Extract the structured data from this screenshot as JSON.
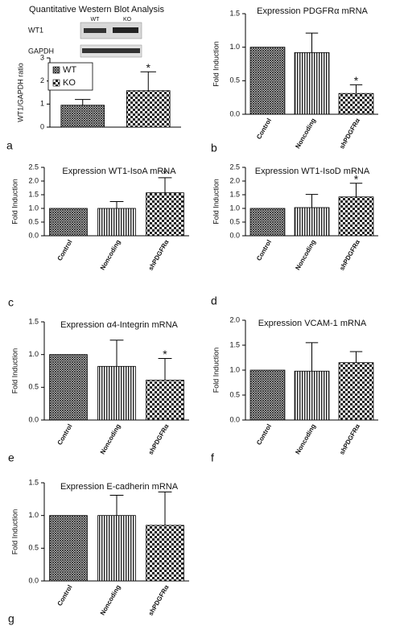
{
  "chart_data": [
    {
      "type": "bar",
      "title": "Quantitative Western Blot Analysis",
      "panel": "a",
      "ylabel": "WT1/GAPDH ratio",
      "blot": {
        "rows": [
          "WT1",
          "GAPDH"
        ],
        "columns": [
          "WT",
          "KO"
        ]
      },
      "categories": [
        null
      ],
      "series": [
        {
          "name": "WT",
          "values": [
            0.95
          ],
          "errors": [
            0.25
          ]
        },
        {
          "name": "KO",
          "values": [
            1.58
          ],
          "errors": [
            0.82
          ],
          "marker": "*"
        }
      ],
      "ylim": [
        0,
        3
      ],
      "yticks": [
        0,
        1,
        2,
        3
      ],
      "color": "#222222",
      "legend": "upper left"
    },
    {
      "type": "bar",
      "title": "Expression PDGFRα mRNA",
      "panel": "b",
      "ylabel": "Fold Induction",
      "categories": [
        "Control",
        "Noncoding",
        "shPDGFRα"
      ],
      "values": [
        1.0,
        0.92,
        0.31
      ],
      "errors": [
        null,
        0.29,
        0.13
      ],
      "markers": [
        null,
        null,
        "*"
      ],
      "color": "#222222",
      "ylim": [
        0,
        1.5
      ],
      "yticks": [
        {
          "value": 0,
          "label": "0.0"
        },
        {
          "value": 0.5,
          "label": "0.5"
        },
        {
          "value": 1,
          "label": "1.0"
        },
        {
          "value": 1.5,
          "label": "1.5"
        }
      ]
    },
    {
      "type": "bar",
      "title": "Expression WT1-IsoA mRNA",
      "panel": "c",
      "ylabel": "Fold Induction",
      "categories": [
        "Control",
        "Noncoding",
        "shPDGFRα"
      ],
      "values": [
        1.0,
        1.0,
        1.57
      ],
      "errors": [
        null,
        0.25,
        0.55
      ],
      "markers": [
        null,
        null,
        "*"
      ],
      "color": "#222222",
      "ylim": [
        0,
        2.5
      ],
      "yticks": [
        {
          "value": 0,
          "label": "0.0"
        },
        {
          "value": 0.5,
          "label": "0.5"
        },
        {
          "value": 1,
          "label": "1.0"
        },
        {
          "value": 1.5,
          "label": "1.5"
        },
        {
          "value": 2,
          "label": "2.0"
        },
        {
          "value": 2.5,
          "label": "2.5"
        }
      ]
    },
    {
      "type": "bar",
      "title": "Expression WT1-IsoD mRNA",
      "panel": "d",
      "ylabel": "Fold Induction",
      "categories": [
        "Control",
        "Noncoding",
        "shPDGFRα"
      ],
      "values": [
        1.0,
        1.03,
        1.42
      ],
      "errors": [
        null,
        0.48,
        0.5
      ],
      "markers": [
        null,
        null,
        "*"
      ],
      "color": "#222222",
      "ylim": [
        0,
        2.5
      ],
      "yticks": [
        {
          "value": 0,
          "label": "0.0"
        },
        {
          "value": 0.5,
          "label": "0.5"
        },
        {
          "value": 1,
          "label": "1.0"
        },
        {
          "value": 1.5,
          "label": "1.5"
        },
        {
          "value": 2,
          "label": "2.0"
        },
        {
          "value": 2.5,
          "label": "2.5"
        }
      ]
    },
    {
      "type": "bar",
      "title": "Expression α4-Integrin mRNA",
      "panel": "e",
      "ylabel": "Fold Induction",
      "categories": [
        "Control",
        "Noncoding",
        "shPDGFRα"
      ],
      "values": [
        1.0,
        0.82,
        0.61
      ],
      "errors": [
        null,
        0.4,
        0.33
      ],
      "markers": [
        null,
        null,
        "*"
      ],
      "color": "#222222",
      "ylim": [
        0,
        1.5
      ],
      "yticks": [
        {
          "value": 0,
          "label": "0.0"
        },
        {
          "value": 0.5,
          "label": "0.5"
        },
        {
          "value": 1,
          "label": "1.0"
        },
        {
          "value": 1.5,
          "label": "1.5"
        }
      ]
    },
    {
      "type": "bar",
      "title": "Expression VCAM-1 mRNA",
      "panel": "f",
      "ylabel": "Fold Induction",
      "categories": [
        "Control",
        "Noncoding",
        "shPDGFRα"
      ],
      "values": [
        1.0,
        0.98,
        1.15
      ],
      "errors": [
        null,
        0.57,
        0.22
      ],
      "color": "#222222",
      "ylim": [
        0,
        2
      ],
      "yticks": [
        {
          "value": 0,
          "label": "0.0"
        },
        {
          "value": 0.5,
          "label": "0.5"
        },
        {
          "value": 1,
          "label": "1.0"
        },
        {
          "value": 1.5,
          "label": "1.5"
        },
        {
          "value": 2,
          "label": "2.0"
        }
      ]
    },
    {
      "type": "bar",
      "title": "Expression E-cadherin mRNA",
      "panel": "g",
      "ylabel": "Fold Induction",
      "categories": [
        "Control",
        "Noncoding",
        "shPDGFRα"
      ],
      "values": [
        1.0,
        1.0,
        0.85
      ],
      "errors": [
        null,
        0.31,
        0.51
      ],
      "color": "#222222",
      "ylim": [
        0,
        1.5
      ],
      "yticks": [
        {
          "value": 0,
          "label": "0.0"
        },
        {
          "value": 0.5,
          "label": "0.5"
        },
        {
          "value": 1,
          "label": "1.0"
        },
        {
          "value": 1.5,
          "label": "1.5"
        }
      ]
    }
  ]
}
